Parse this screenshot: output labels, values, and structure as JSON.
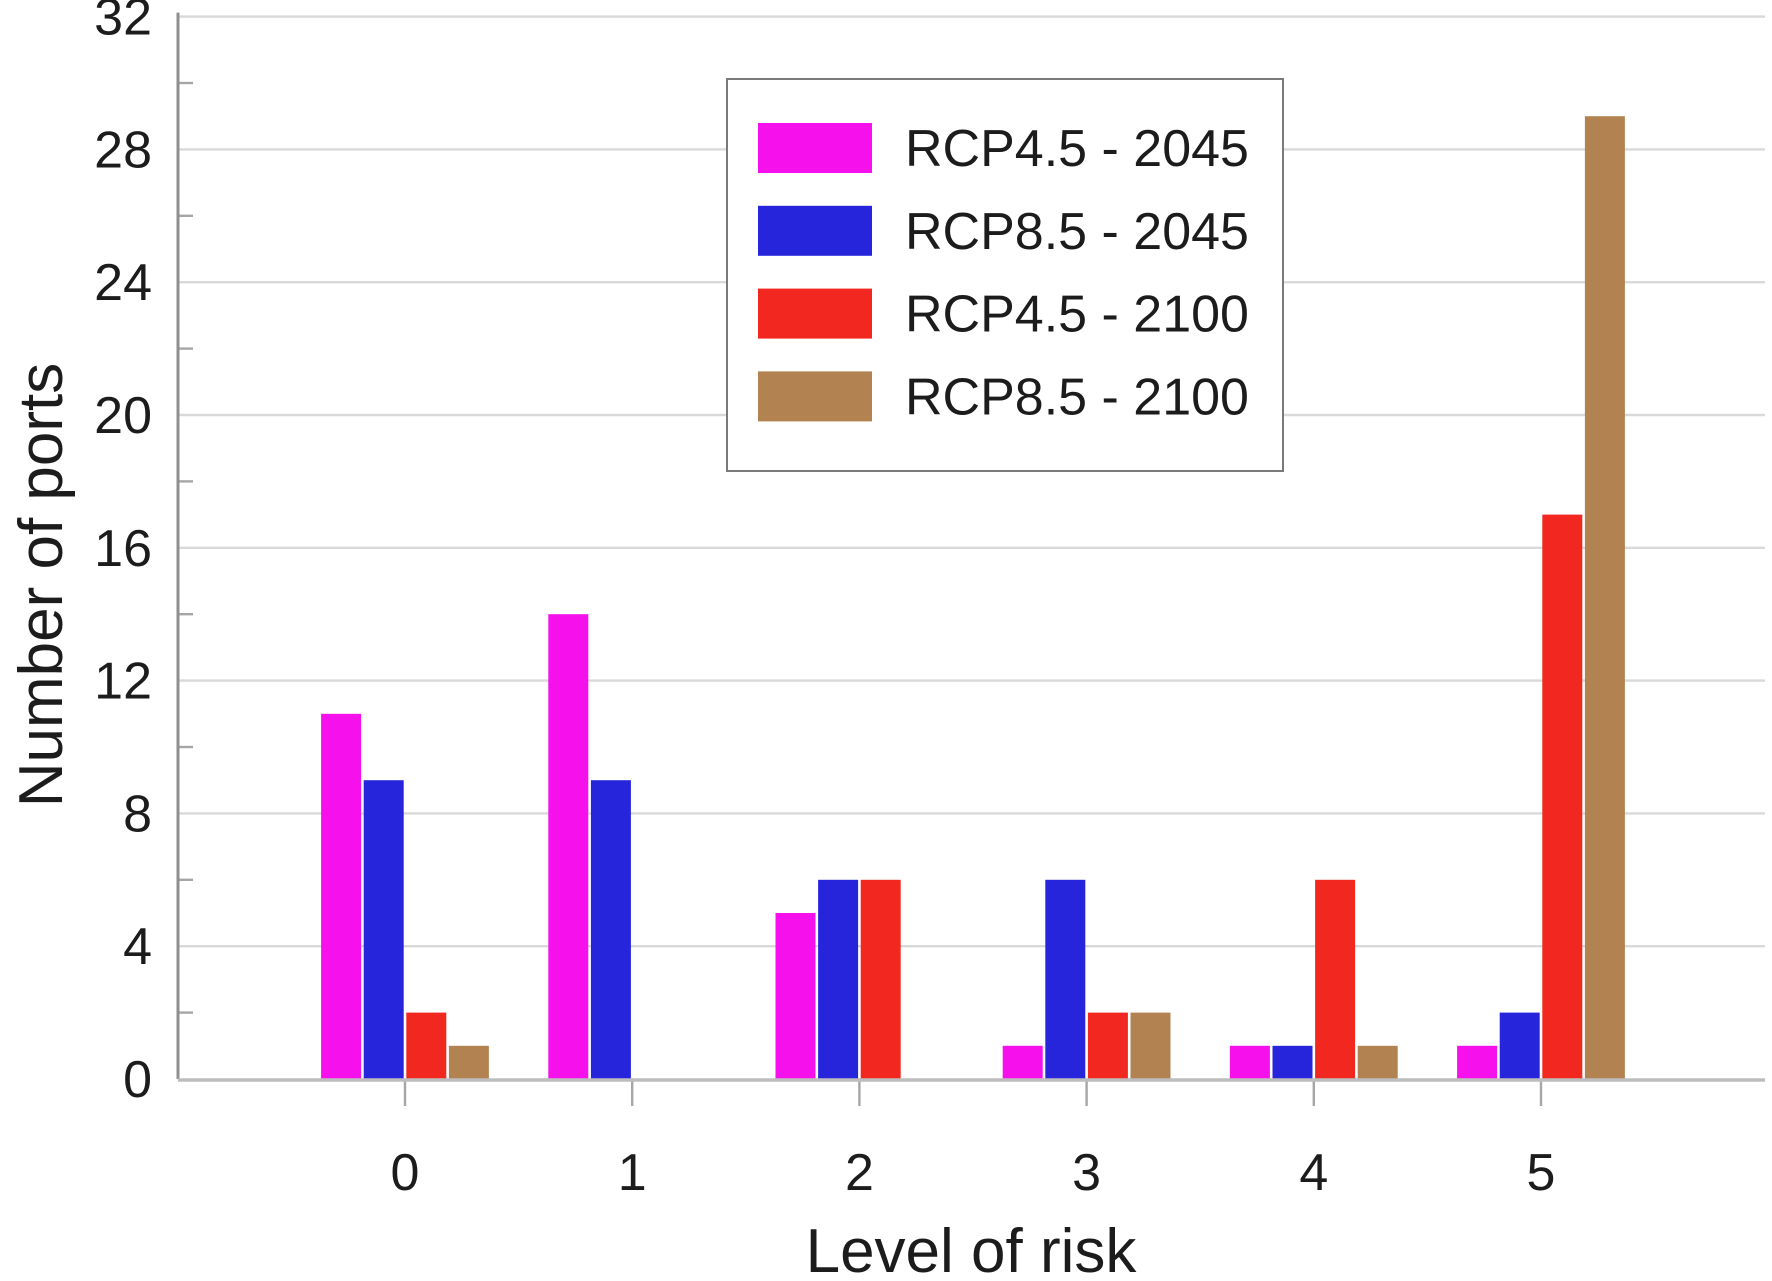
{
  "chart_data": {
    "type": "bar",
    "title": "",
    "xlabel": "Level of risk",
    "ylabel": "Number of ports",
    "categories": [
      "0",
      "1",
      "2",
      "3",
      "4",
      "5"
    ],
    "series": [
      {
        "name": "RCP4.5 - 2045",
        "color": "#f611ec",
        "values": [
          11,
          14,
          5,
          1,
          1,
          1
        ]
      },
      {
        "name": "RCP8.5 - 2045",
        "color": "#2625dc",
        "values": [
          9,
          9,
          6,
          6,
          1,
          2
        ]
      },
      {
        "name": "RCP4.5 - 2100",
        "color": "#f2271f",
        "values": [
          2,
          0,
          6,
          2,
          6,
          17
        ]
      },
      {
        "name": "RCP8.5 - 2100",
        "color": "#b28350",
        "values": [
          1,
          0,
          0,
          2,
          1,
          29
        ]
      }
    ],
    "ylim": [
      0,
      32
    ],
    "ytick_step": 4,
    "yminor_step": 2,
    "grid": "horizontal-major",
    "legend_position": "upper-center",
    "y_ticks": [
      "0",
      "4",
      "8",
      "12",
      "16",
      "20",
      "24",
      "28",
      "32"
    ]
  },
  "colors": {
    "background": "#ffffff",
    "gridline": "#d9d9d9",
    "baseline": "#bdbdbd",
    "spine": "#8f8f8f",
    "tick": "#a6a6a6",
    "text": "#1c1c1c",
    "legend_border": "#7a7a7a",
    "legend_fill": "#ffffff"
  }
}
